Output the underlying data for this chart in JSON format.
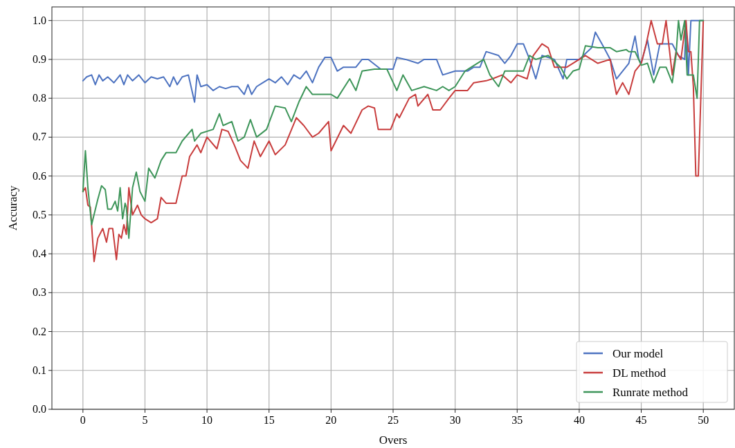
{
  "chart_data": {
    "type": "line",
    "xlabel": "Overs",
    "ylabel": "Accuracy",
    "xlim": [
      -2.5,
      52.5
    ],
    "xticks": [
      0,
      5,
      10,
      15,
      20,
      25,
      30,
      35,
      40,
      45,
      50
    ],
    "ylim": [
      0,
      1.035
    ],
    "yticks": [
      {
        "value": 0,
        "label": "0.0"
      },
      0.1,
      0.2,
      0.3,
      0.4,
      0.5,
      0.6,
      0.7,
      0.8,
      0.9,
      {
        "value": 1,
        "label": "1.0"
      }
    ],
    "grid": true,
    "legend": "bottom right",
    "line_style": "solid",
    "marker": "none",
    "series": [
      {
        "name": "Our model",
        "color": "#4c72c0",
        "x": [
          0,
          0.3,
          0.7,
          1,
          1.3,
          1.6,
          2,
          2.5,
          3,
          3.3,
          3.6,
          4,
          4.5,
          5,
          5.5,
          6,
          6.5,
          7,
          7.3,
          7.6,
          8,
          8.5,
          9,
          9.2,
          9.5,
          10,
          10.5,
          11,
          11.5,
          12,
          12.5,
          13,
          13.3,
          13.6,
          14,
          14.5,
          15,
          15.5,
          16,
          16.5,
          17,
          17.5,
          18,
          18.5,
          19,
          19.5,
          20,
          20.5,
          21,
          22,
          22.5,
          23,
          24,
          25,
          25.3,
          26,
          27,
          27.5,
          28.5,
          29,
          30,
          31,
          31.5,
          32,
          32.5,
          33.5,
          34,
          34.5,
          35,
          35.5,
          36,
          36.5,
          37,
          38,
          38.7,
          39,
          40,
          41,
          41.3,
          42,
          42.5,
          43,
          44,
          44.5,
          44.8,
          45,
          45.5,
          46,
          46.5,
          47.5,
          48,
          48.5,
          48.6,
          48.8,
          49,
          50
        ],
        "values": [
          0.845,
          0.855,
          0.86,
          0.835,
          0.86,
          0.845,
          0.855,
          0.84,
          0.86,
          0.835,
          0.86,
          0.845,
          0.86,
          0.84,
          0.855,
          0.85,
          0.855,
          0.83,
          0.855,
          0.835,
          0.855,
          0.86,
          0.79,
          0.86,
          0.83,
          0.835,
          0.82,
          0.83,
          0.825,
          0.83,
          0.83,
          0.81,
          0.835,
          0.81,
          0.83,
          0.84,
          0.85,
          0.84,
          0.855,
          0.835,
          0.86,
          0.85,
          0.87,
          0.84,
          0.88,
          0.905,
          0.905,
          0.87,
          0.88,
          0.88,
          0.9,
          0.9,
          0.875,
          0.875,
          0.905,
          0.9,
          0.89,
          0.9,
          0.9,
          0.86,
          0.87,
          0.87,
          0.88,
          0.88,
          0.92,
          0.91,
          0.89,
          0.91,
          0.94,
          0.94,
          0.9,
          0.85,
          0.91,
          0.9,
          0.85,
          0.9,
          0.9,
          0.93,
          0.97,
          0.93,
          0.9,
          0.85,
          0.89,
          0.96,
          0.9,
          0.89,
          0.95,
          0.86,
          0.94,
          0.94,
          0.91,
          0.9,
          1.0,
          0.86,
          1.0,
          1.0
        ]
      },
      {
        "name": "DL method",
        "color": "#c83c3c",
        "x": [
          0,
          0.2,
          0.4,
          0.6,
          0.9,
          1.2,
          1.6,
          1.9,
          2.1,
          2.4,
          2.7,
          2.9,
          3.1,
          3.3,
          3.5,
          3.7,
          4,
          4.4,
          4.7,
          5,
          5.5,
          6,
          6.3,
          6.7,
          7.5,
          8,
          8.3,
          8.6,
          9.2,
          9.5,
          10,
          10.8,
          11.2,
          11.7,
          12.2,
          12.7,
          13.3,
          13.8,
          14.3,
          15,
          15.5,
          16.3,
          17.2,
          17.8,
          18.5,
          19,
          19.8,
          20,
          21,
          21.6,
          22.5,
          23,
          23.5,
          23.8,
          24.3,
          24.8,
          25.3,
          25.5,
          26.3,
          26.8,
          27,
          27.8,
          28.2,
          28.8,
          29.5,
          30,
          31,
          31.5,
          32.5,
          33,
          33.8,
          34.5,
          35,
          35.8,
          36.3,
          37,
          37.5,
          38,
          39,
          40,
          40.5,
          41.5,
          42.5,
          42.7,
          43,
          43.5,
          44,
          44.5,
          45,
          45.4,
          45.8,
          46.3,
          46.7,
          47,
          47.5,
          47.8,
          48.2,
          48.6,
          48.8,
          49,
          49.2,
          49.4,
          49.6,
          49.8,
          50
        ],
        "values": [
          0.56,
          0.57,
          0.525,
          0.52,
          0.38,
          0.44,
          0.465,
          0.43,
          0.465,
          0.465,
          0.385,
          0.45,
          0.44,
          0.475,
          0.45,
          0.57,
          0.5,
          0.525,
          0.5,
          0.49,
          0.48,
          0.49,
          0.545,
          0.53,
          0.53,
          0.6,
          0.6,
          0.65,
          0.68,
          0.66,
          0.7,
          0.67,
          0.72,
          0.715,
          0.68,
          0.64,
          0.62,
          0.69,
          0.65,
          0.69,
          0.655,
          0.68,
          0.75,
          0.73,
          0.7,
          0.71,
          0.74,
          0.665,
          0.73,
          0.71,
          0.77,
          0.78,
          0.775,
          0.72,
          0.72,
          0.72,
          0.76,
          0.75,
          0.8,
          0.81,
          0.78,
          0.81,
          0.77,
          0.77,
          0.8,
          0.82,
          0.82,
          0.84,
          0.845,
          0.85,
          0.86,
          0.84,
          0.86,
          0.85,
          0.91,
          0.94,
          0.93,
          0.88,
          0.88,
          0.9,
          0.91,
          0.89,
          0.9,
          0.86,
          0.81,
          0.84,
          0.81,
          0.87,
          0.89,
          0.94,
          1.0,
          0.94,
          0.94,
          1.0,
          0.86,
          0.92,
          0.9,
          1.0,
          0.92,
          0.92,
          0.83,
          0.6,
          0.6,
          0.8,
          1.0
        ]
      },
      {
        "name": "Runrate method",
        "color": "#3d9559",
        "x": [
          0,
          0.2,
          0.4,
          0.7,
          1.2,
          1.5,
          1.8,
          2,
          2.3,
          2.6,
          2.8,
          3,
          3.2,
          3.4,
          3.5,
          3.7,
          4,
          4.3,
          4.6,
          5,
          5.3,
          5.8,
          6.3,
          6.7,
          7.5,
          8,
          8.8,
          9,
          9.5,
          10.5,
          11,
          11.3,
          12,
          12.5,
          13,
          13.5,
          14,
          14.8,
          15.5,
          16.3,
          16.8,
          17.4,
          18,
          18.5,
          19.3,
          20,
          20.5,
          21.5,
          22,
          22.5,
          23.5,
          24.5,
          25.3,
          25.8,
          26.5,
          27.5,
          28.5,
          29,
          29.5,
          30,
          30.8,
          31.3,
          32.3,
          32.8,
          33.5,
          34,
          34.5,
          35.5,
          36,
          36.5,
          37.5,
          38.5,
          39,
          39.5,
          40,
          40.5,
          41.5,
          42.5,
          43,
          43.8,
          44,
          44.5,
          45,
          45.5,
          46,
          46.5,
          47,
          47.5,
          47.8,
          48,
          48.2,
          48.5,
          48.7,
          49.2,
          49.5,
          49.7,
          50
        ],
        "values": [
          0.56,
          0.665,
          0.57,
          0.475,
          0.54,
          0.575,
          0.565,
          0.515,
          0.515,
          0.535,
          0.51,
          0.57,
          0.49,
          0.53,
          0.52,
          0.44,
          0.57,
          0.61,
          0.56,
          0.535,
          0.62,
          0.595,
          0.64,
          0.66,
          0.66,
          0.69,
          0.72,
          0.69,
          0.71,
          0.72,
          0.76,
          0.73,
          0.74,
          0.69,
          0.7,
          0.745,
          0.7,
          0.72,
          0.78,
          0.775,
          0.74,
          0.79,
          0.83,
          0.81,
          0.81,
          0.81,
          0.8,
          0.85,
          0.82,
          0.87,
          0.875,
          0.875,
          0.82,
          0.86,
          0.82,
          0.83,
          0.82,
          0.83,
          0.82,
          0.83,
          0.87,
          0.88,
          0.9,
          0.86,
          0.83,
          0.87,
          0.87,
          0.87,
          0.91,
          0.9,
          0.91,
          0.88,
          0.85,
          0.87,
          0.875,
          0.935,
          0.93,
          0.93,
          0.92,
          0.925,
          0.92,
          0.92,
          0.885,
          0.89,
          0.84,
          0.88,
          0.88,
          0.84,
          0.91,
          1.0,
          0.95,
          1.0,
          0.86,
          0.86,
          0.8,
          1.0,
          1.0
        ]
      }
    ]
  }
}
